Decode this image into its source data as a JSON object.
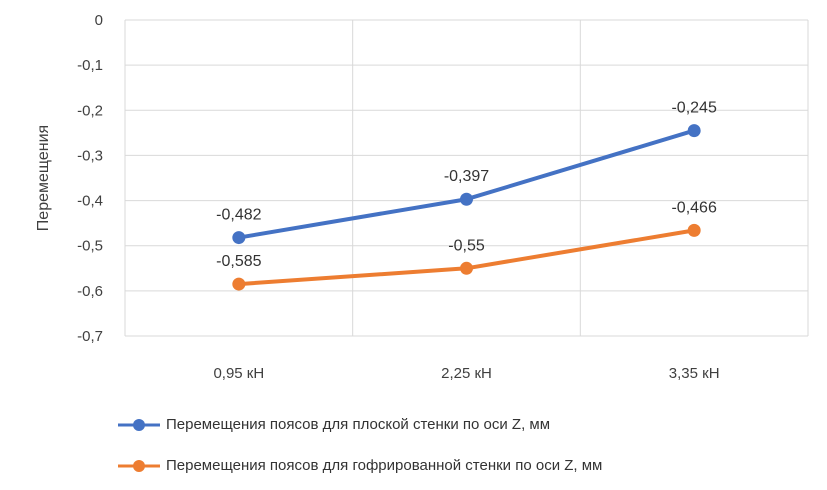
{
  "chart_data": {
    "type": "line",
    "categories": [
      "0,95 кН",
      "2,25 кН",
      "3,35 кН"
    ],
    "series": [
      {
        "name": "Перемещения поясов для плоской  стенки по оси Z, мм",
        "values": [
          -0.482,
          -0.397,
          -0.245
        ],
        "labels": [
          "-0,482",
          "-0,397",
          "-0,245"
        ],
        "color": "#4472C4"
      },
      {
        "name": "Перемещения поясов для гофрированной  стенки по оси Z, мм",
        "values": [
          -0.585,
          -0.55,
          -0.466
        ],
        "labels": [
          "-0,585",
          "-0,55",
          "-0,466"
        ],
        "color": "#ED7D31"
      }
    ],
    "ylabel": "Перемещения",
    "xlabel": "",
    "ylim": [
      -0.7,
      0
    ],
    "yticks": [
      "0",
      "-0,1",
      "-0,2",
      "-0,3",
      "-0,4",
      "-0,5",
      "-0,6",
      "-0,7"
    ],
    "grid": true,
    "legend": "bottom"
  }
}
